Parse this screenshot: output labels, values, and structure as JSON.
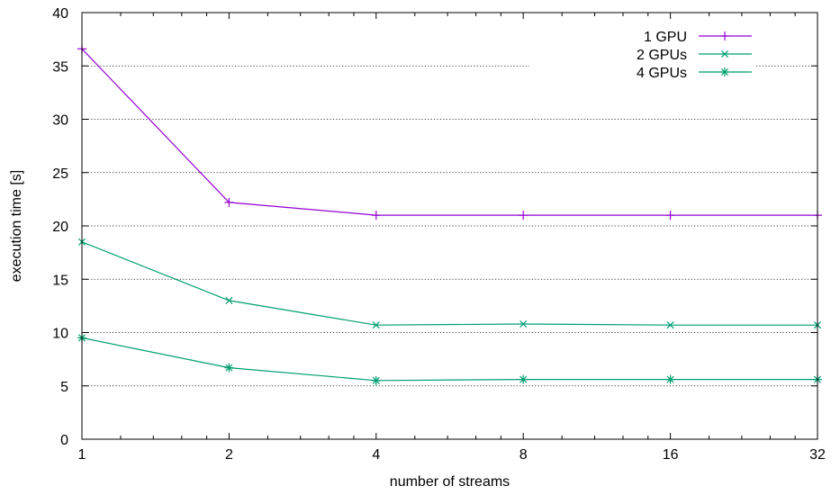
{
  "chart_data": {
    "type": "line",
    "xlabel": "number of streams",
    "ylabel": "execution time [s]",
    "x_scale": "log2",
    "x": [
      1,
      2,
      4,
      8,
      16,
      32
    ],
    "x_tick_labels": [
      "1",
      "2",
      "4",
      "8",
      "16",
      "32"
    ],
    "ylim": [
      0,
      40
    ],
    "y_ticks": [
      0,
      5,
      10,
      15,
      20,
      25,
      30,
      35,
      40
    ],
    "y_tick_labels": [
      "0",
      "5",
      "10",
      "15",
      "20",
      "25",
      "30",
      "35",
      "40"
    ],
    "grid": "horizontal dotted",
    "legend_position": "top-right",
    "series": [
      {
        "name": "1 GPU",
        "color": "#9400d3",
        "marker": "plus",
        "values": [
          36.6,
          22.2,
          21.0,
          21.0,
          21.0,
          21.0
        ]
      },
      {
        "name": "2 GPUs",
        "color": "#009e73",
        "marker": "cross",
        "values": [
          18.5,
          13.0,
          10.7,
          10.8,
          10.7,
          10.7
        ]
      },
      {
        "name": "4 GPUs",
        "color": "#009e73",
        "marker": "star",
        "values": [
          9.5,
          6.7,
          5.5,
          5.6,
          5.6,
          5.6
        ]
      }
    ]
  }
}
